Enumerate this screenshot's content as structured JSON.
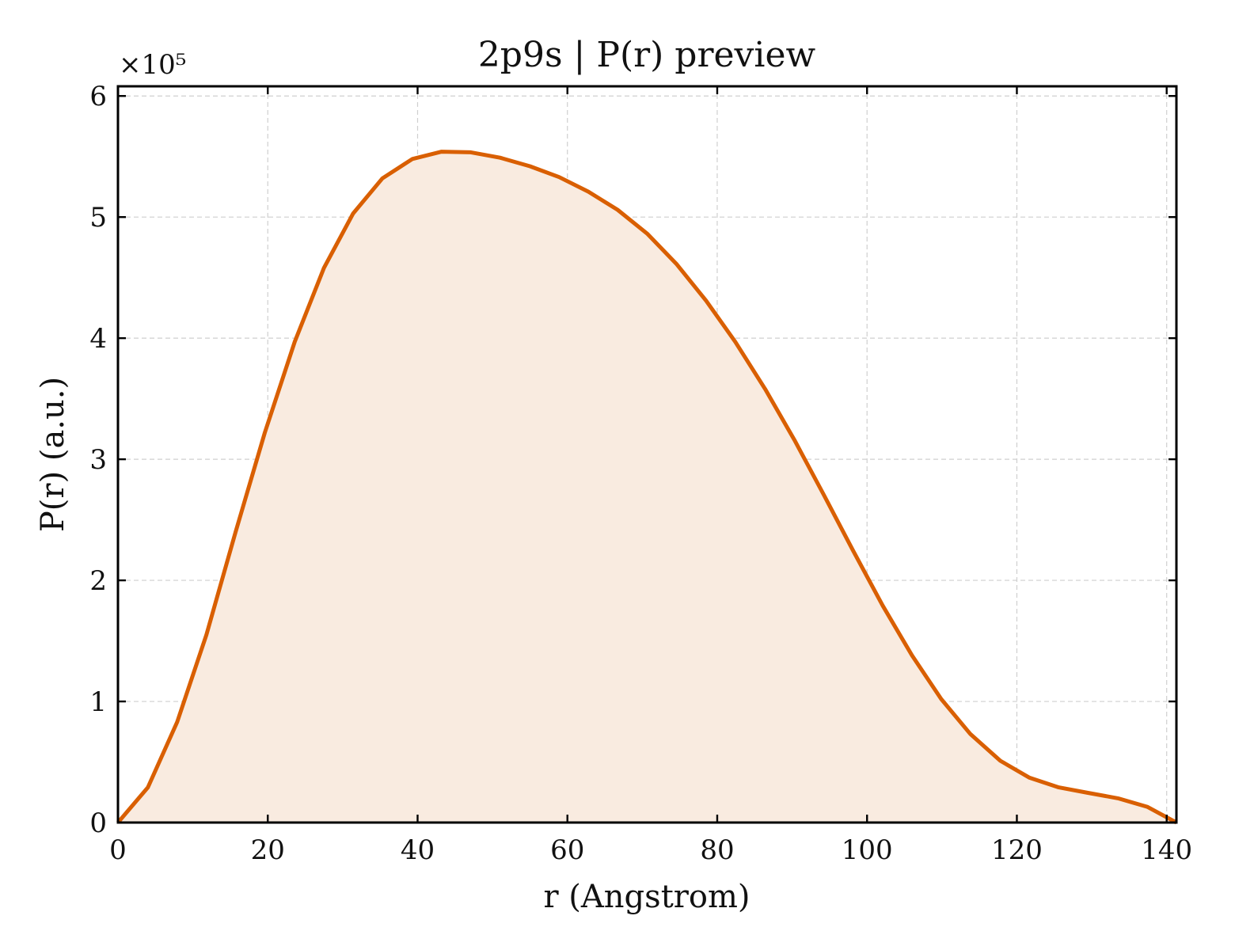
{
  "chart_data": {
    "type": "area",
    "title": "2p9s | P(r) preview",
    "xlabel": "r (Angstrom)",
    "ylabel": "P(r) (a.u.)",
    "y_multiplier_text": "×10⁵",
    "xlim": [
      0,
      141.3
    ],
    "ylim": [
      0,
      6.08
    ],
    "xticks": [
      0,
      20,
      40,
      60,
      80,
      100,
      120,
      140
    ],
    "yticks": [
      0,
      1,
      2,
      3,
      4,
      5,
      6
    ],
    "grid": true,
    "line_color": "#d95f02",
    "fill_color": "#f9ebe0",
    "series": [
      {
        "x": [
          0,
          4,
          7.9,
          11.8,
          15.7,
          19.6,
          23.6,
          27.5,
          31.4,
          35.3,
          39.3,
          43.2,
          47.1,
          51,
          55,
          58.9,
          62.8,
          66.7,
          70.7,
          74.6,
          78.5,
          82.4,
          86.4,
          90.3,
          94.2,
          98.1,
          102.1,
          106,
          109.9,
          113.8,
          117.8,
          121.7,
          125.6,
          129.5,
          133.5,
          137.4,
          141.3
        ],
        "y": [
          0,
          0.29,
          0.83,
          1.55,
          2.4,
          3.22,
          3.97,
          4.58,
          5.03,
          5.32,
          5.48,
          5.54,
          5.535,
          5.49,
          5.42,
          5.33,
          5.21,
          5.06,
          4.86,
          4.61,
          4.31,
          3.97,
          3.58,
          3.16,
          2.71,
          2.25,
          1.79,
          1.38,
          1.02,
          0.73,
          0.51,
          0.37,
          0.29,
          0.245,
          0.2,
          0.13,
          0
        ]
      }
    ]
  }
}
